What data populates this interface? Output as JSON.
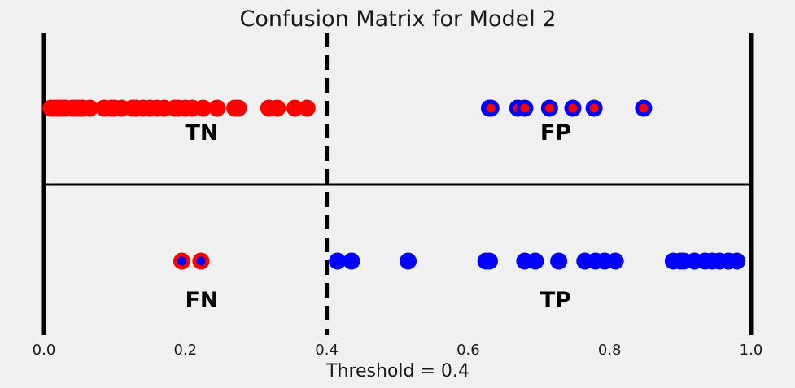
{
  "chart_data": {
    "type": "scatter",
    "title": "Confusion Matrix for Model 2",
    "xlabel": "Threshold = 0.4",
    "xlim": [
      0.0,
      1.0
    ],
    "threshold": 0.4,
    "x_ticks": [
      "0.0",
      "0.2",
      "0.4",
      "0.6",
      "0.8",
      "1.0"
    ],
    "quadrant_labels": {
      "tn": "TN",
      "fp": "FP",
      "fn": "FN",
      "tp": "TP"
    },
    "colors": {
      "negative": "#ff0000",
      "positive": "#0000ff",
      "lines": "#000000"
    },
    "series": [
      {
        "class": "actual-negative",
        "row": "top",
        "fill": "#ff0000",
        "edge": "#ff0000",
        "x": [
          0.01,
          0.015,
          0.02,
          0.025,
          0.03,
          0.04,
          0.045,
          0.05,
          0.055,
          0.065,
          0.085,
          0.095,
          0.1,
          0.11,
          0.125,
          0.13,
          0.14,
          0.15,
          0.16,
          0.17,
          0.185,
          0.19,
          0.2,
          0.21,
          0.225,
          0.245,
          0.27,
          0.275,
          0.318,
          0.33,
          0.355,
          0.372
        ]
      },
      {
        "class": "false-positive",
        "row": "top",
        "fill": "#ff0000",
        "edge": "#0000ff",
        "x": [
          0.63,
          0.632,
          0.67,
          0.68,
          0.715,
          0.748,
          0.778,
          0.848
        ]
      },
      {
        "class": "false-negative",
        "row": "bottom",
        "fill": "#0000ff",
        "edge": "#ff0000",
        "x": [
          0.195,
          0.222
        ]
      },
      {
        "class": "true-positive",
        "row": "bottom",
        "fill": "#0000ff",
        "edge": "#0000ff",
        "x": [
          0.415,
          0.435,
          0.515,
          0.625,
          0.63,
          0.68,
          0.695,
          0.728,
          0.765,
          0.78,
          0.793,
          0.808,
          0.89,
          0.9,
          0.905,
          0.92,
          0.935,
          0.945,
          0.955,
          0.968,
          0.98
        ]
      }
    ]
  }
}
